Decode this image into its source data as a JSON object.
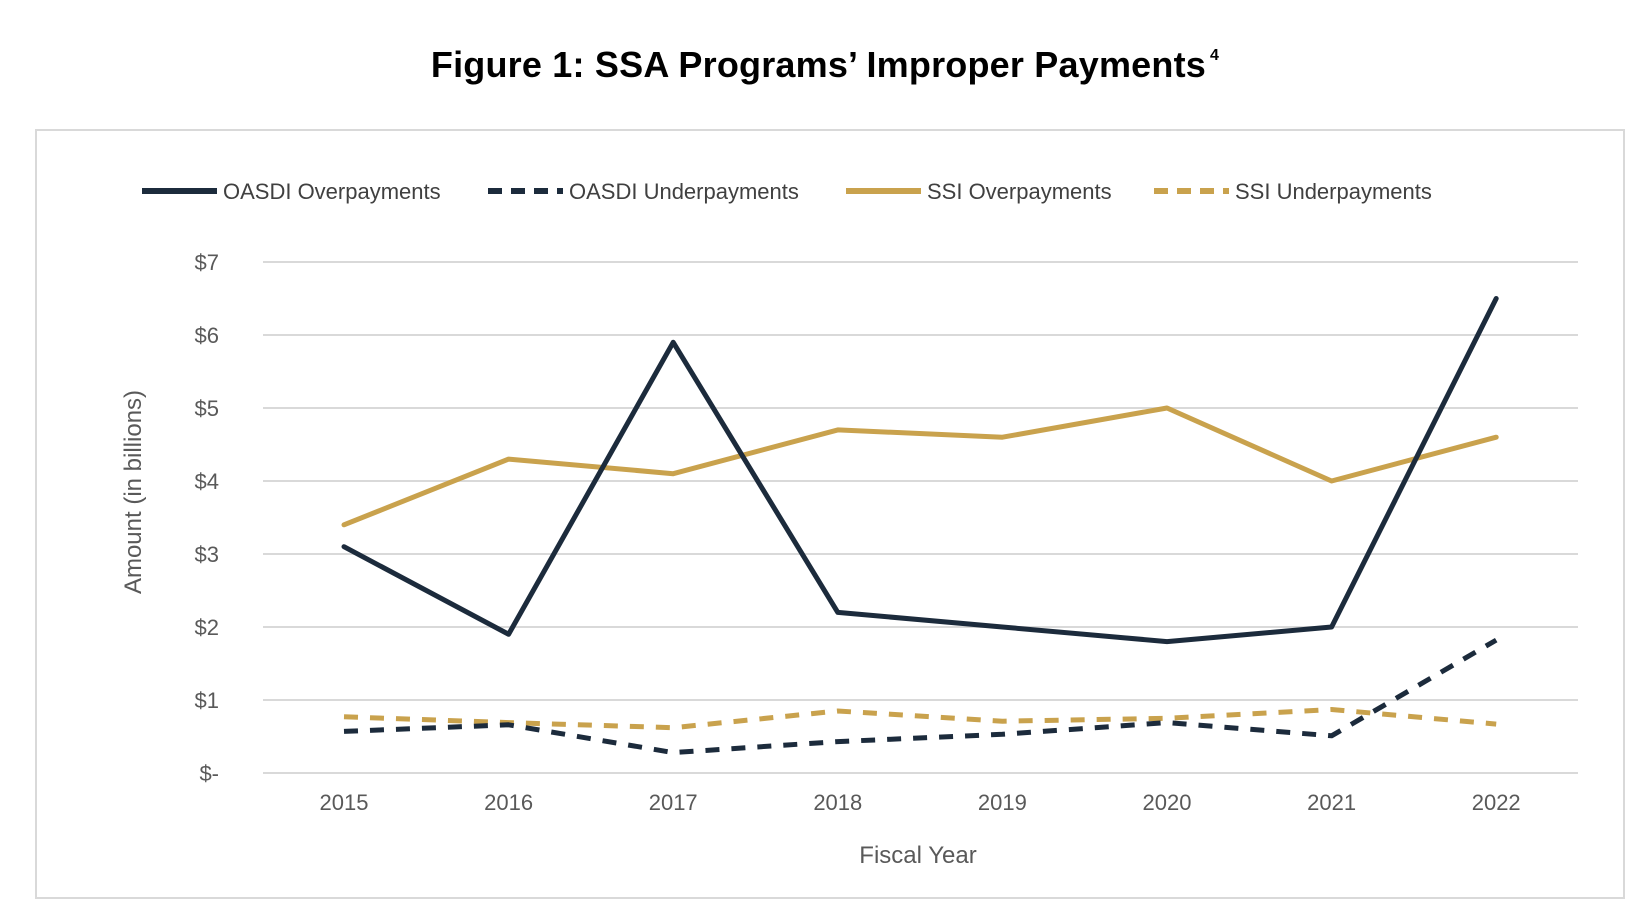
{
  "figure": {
    "title": "Figure 1:  SSA Programs’ Improper Payments",
    "footnote_marker": "4"
  },
  "colors": {
    "navy": "#1c2b3c",
    "gold": "#c9a24d",
    "grid": "#d9d9d9",
    "axis_text": "#595959"
  },
  "chart_data": {
    "type": "line",
    "title": "Figure 1:  SSA Programs’ Improper Payments",
    "xlabel": "Fiscal Year",
    "ylabel": "Amount  (in billions)",
    "categories": [
      "2015",
      "2016",
      "2017",
      "2018",
      "2019",
      "2020",
      "2021",
      "2022"
    ],
    "ylim": [
      0,
      7
    ],
    "yticks": [
      0,
      1,
      2,
      3,
      4,
      5,
      6,
      7
    ],
    "ytick_labels": [
      "$-",
      "$1",
      "$2",
      "$3",
      "$4",
      "$5",
      "$6",
      "$7"
    ],
    "grid": true,
    "legend_position": "top",
    "series": [
      {
        "name": "OASDI Overpayments",
        "color": "#1c2b3c",
        "dashed": false,
        "values": [
          3.1,
          1.9,
          5.9,
          2.2,
          2.0,
          1.8,
          2.0,
          6.5
        ]
      },
      {
        "name": "OASDI Underpayments",
        "color": "#1c2b3c",
        "dashed": true,
        "values": [
          0.57,
          0.66,
          0.28,
          0.43,
          0.53,
          0.69,
          0.51,
          1.82
        ]
      },
      {
        "name": "SSI Overpayments",
        "color": "#c9a24d",
        "dashed": false,
        "values": [
          3.4,
          4.3,
          4.1,
          4.7,
          4.6,
          5.0,
          4.0,
          4.6
        ]
      },
      {
        "name": "SSI Underpayments",
        "color": "#c9a24d",
        "dashed": true,
        "values": [
          0.77,
          0.69,
          0.62,
          0.85,
          0.71,
          0.75,
          0.87,
          0.67
        ]
      }
    ]
  }
}
